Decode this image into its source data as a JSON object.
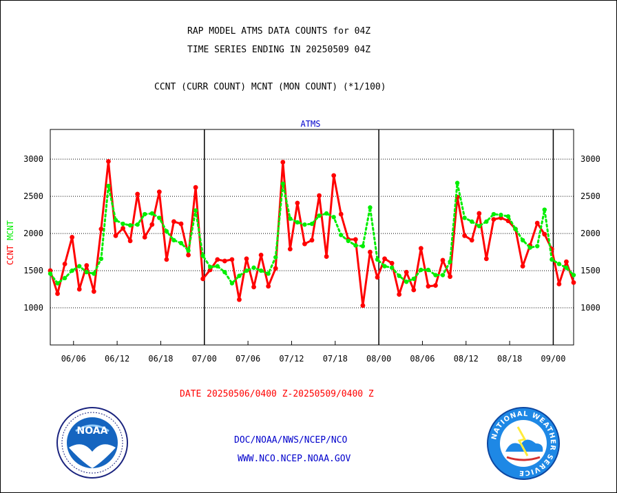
{
  "header": {
    "line1": "RAP MODEL ATMS DATA COUNTS for 04Z",
    "line2": "TIME SERIES ENDING IN 20250509 04Z",
    "line3": "CCNT (CURR COUNT) MCNT (MON COUNT) (*1/100)"
  },
  "footer": {
    "date_range": "DATE 20250506/0400 Z-20250509/0400 Z",
    "org": "DOC/NOAA/NWS/NCEP/NCO",
    "url": "WWW.NCO.NCEP.NOAA.GOV"
  },
  "logos": {
    "left_text": "NOAA",
    "right_text": "NATIONAL WEATHER SERVICE"
  },
  "colors": {
    "ccnt": "#ff0000",
    "mcnt": "#00ee00",
    "title_blue": "#0000cc",
    "axis": "#000000"
  },
  "chart_data": {
    "type": "line",
    "title": "ATMS",
    "ylabel_ccnt": "CCNT",
    "ylabel_mcnt": "MCNT",
    "ylim": [
      500,
      3400
    ],
    "yticks": [
      1000,
      1500,
      2000,
      2500,
      3000
    ],
    "xticks": [
      "06/06",
      "06/12",
      "06/18",
      "07/00",
      "07/06",
      "07/12",
      "07/18",
      "08/00",
      "08/06",
      "08/12",
      "08/18",
      "09/00"
    ],
    "day_boundaries": [
      "07/00",
      "08/00",
      "09/00"
    ],
    "grid": true,
    "x_hours": [
      0,
      1,
      2,
      3,
      4,
      5,
      6,
      7,
      8,
      9,
      10,
      11,
      12,
      13,
      14,
      15,
      16,
      17,
      18,
      19,
      20,
      21,
      22,
      23,
      24,
      25,
      26,
      27,
      28,
      29,
      30,
      31,
      32,
      33,
      34,
      35,
      36,
      37,
      38,
      39,
      40,
      41,
      42,
      43,
      44,
      45,
      46,
      47,
      48,
      49,
      50,
      51,
      52,
      53,
      54,
      55,
      56,
      57,
      58,
      59,
      60,
      61,
      62,
      63,
      64,
      65,
      66,
      67,
      68,
      69,
      70,
      71,
      72
    ],
    "series": [
      {
        "name": "CCNT",
        "color": "#ff0000",
        "values": [
          1500,
          1190,
          1590,
          1950,
          1250,
          1570,
          1220,
          2060,
          2970,
          1970,
          2070,
          1900,
          2530,
          1950,
          2120,
          2560,
          1650,
          2160,
          2130,
          1710,
          2620,
          1390,
          1510,
          1650,
          1630,
          1650,
          1110,
          1660,
          1280,
          1710,
          1290,
          1530,
          2960,
          1790,
          2410,
          1860,
          1910,
          2510,
          1690,
          2780,
          2260,
          1920,
          1920,
          1030,
          1750,
          1410,
          1660,
          1600,
          1180,
          1480,
          1240,
          1800,
          1290,
          1300,
          1640,
          1420,
          2490,
          1970,
          1910,
          2270,
          1660,
          2190,
          2210,
          2170,
          2060,
          1560,
          1840,
          2140,
          1990,
          1790,
          1320,
          1620,
          1340
        ]
      },
      {
        "name": "MCNT",
        "color": "#00ee00",
        "values": [
          1460,
          1330,
          1400,
          1500,
          1560,
          1480,
          1460,
          1660,
          2640,
          2180,
          2130,
          2110,
          2120,
          2260,
          2270,
          2210,
          2030,
          1910,
          1870,
          1770,
          2310,
          1700,
          1550,
          1560,
          1480,
          1330,
          1430,
          1500,
          1540,
          1500,
          1460,
          1680,
          2670,
          2200,
          2150,
          2120,
          2130,
          2240,
          2270,
          2220,
          1980,
          1900,
          1840,
          1830,
          2350,
          1650,
          1560,
          1540,
          1430,
          1350,
          1390,
          1510,
          1510,
          1440,
          1440,
          1620,
          2680,
          2210,
          2160,
          2100,
          2160,
          2260,
          2250,
          2230,
          2060,
          1910,
          1810,
          1830,
          2320,
          1650,
          1590,
          1540,
          1440
        ]
      }
    ]
  }
}
